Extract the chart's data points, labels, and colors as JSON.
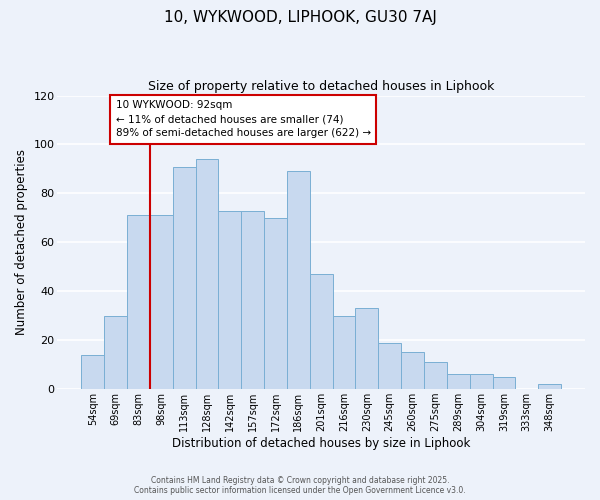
{
  "title": "10, WYKWOOD, LIPHOOK, GU30 7AJ",
  "subtitle": "Size of property relative to detached houses in Liphook",
  "xlabel": "Distribution of detached houses by size in Liphook",
  "ylabel": "Number of detached properties",
  "bar_color": "#c8d9ef",
  "bar_edge_color": "#7aafd4",
  "background_color": "#edf2fa",
  "grid_color": "#ffffff",
  "categories": [
    "54sqm",
    "69sqm",
    "83sqm",
    "98sqm",
    "113sqm",
    "128sqm",
    "142sqm",
    "157sqm",
    "172sqm",
    "186sqm",
    "201sqm",
    "216sqm",
    "230sqm",
    "245sqm",
    "260sqm",
    "275sqm",
    "289sqm",
    "304sqm",
    "319sqm",
    "333sqm",
    "348sqm"
  ],
  "values": [
    14,
    30,
    71,
    71,
    91,
    94,
    73,
    73,
    70,
    89,
    47,
    30,
    33,
    19,
    15,
    11,
    6,
    6,
    5,
    0,
    2
  ],
  "ylim": [
    0,
    120
  ],
  "yticks": [
    0,
    20,
    40,
    60,
    80,
    100,
    120
  ],
  "vline_position": 2.5,
  "vline_color": "#cc0000",
  "annotation_text": "10 WYKWOOD: 92sqm\n← 11% of detached houses are smaller (74)\n89% of semi-detached houses are larger (622) →",
  "annotation_box_color": "#ffffff",
  "annotation_box_edge_color": "#cc0000",
  "footer_line1": "Contains HM Land Registry data © Crown copyright and database right 2025.",
  "footer_line2": "Contains public sector information licensed under the Open Government Licence v3.0."
}
